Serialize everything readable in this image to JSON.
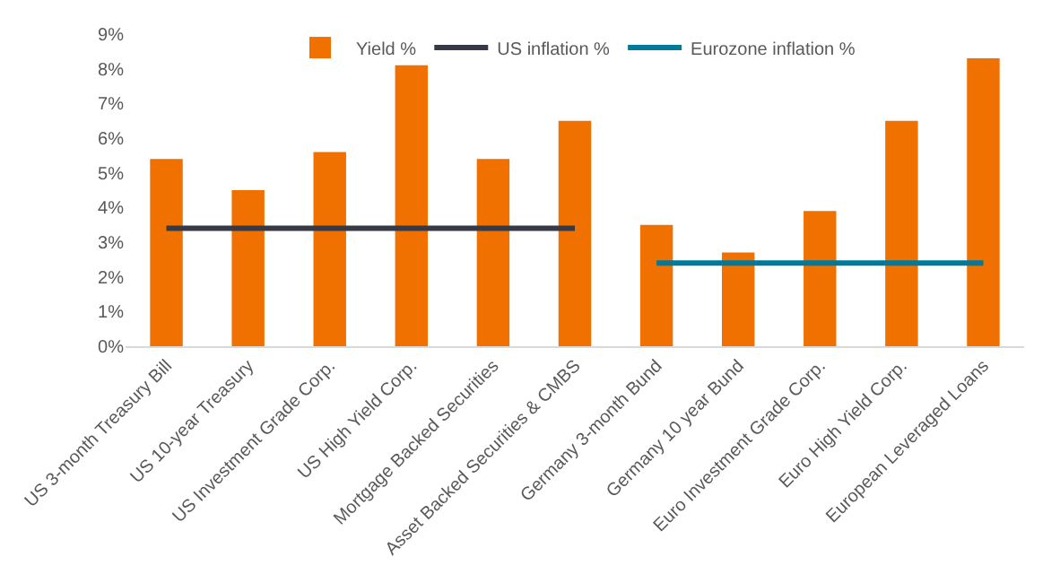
{
  "chart_data": {
    "type": "bar",
    "categories": [
      "US 3-month Treasury Bill",
      "US 10-year Treasury",
      "US Investment Grade Corp.",
      "US High Yield Corp.",
      "Mortgage Backed Securities",
      "Asset Backed Securities & CMBS",
      "Germany 3-month Bund",
      "Germany 10 year Bund",
      "Euro Investment Grade Corp.",
      "Euro High Yield Corp.",
      "European Leveraged Loans"
    ],
    "series": [
      {
        "name": "Yield %",
        "color": "#f07000",
        "values": [
          5.4,
          4.5,
          5.6,
          8.1,
          5.4,
          6.5,
          3.5,
          2.7,
          3.9,
          6.5,
          8.3
        ]
      },
      {
        "name": "US inflation %",
        "type": "line",
        "color": "#373a45",
        "values": [
          3.4,
          3.4,
          3.4,
          3.4,
          3.4,
          3.4,
          null,
          null,
          null,
          null,
          null
        ]
      },
      {
        "name": "Eurozone inflation %",
        "type": "line",
        "color": "#00799a",
        "values": [
          null,
          null,
          null,
          null,
          null,
          null,
          2.4,
          2.4,
          2.4,
          2.4,
          2.4
        ]
      }
    ],
    "ylim": [
      0,
      9
    ],
    "yticks": [
      {
        "value": 0,
        "label": "0%"
      },
      {
        "value": 1,
        "label": "1%"
      },
      {
        "value": 2,
        "label": "2%"
      },
      {
        "value": 3,
        "label": "3%"
      },
      {
        "value": 4,
        "label": "4%"
      },
      {
        "value": 5,
        "label": "5%"
      },
      {
        "value": 6,
        "label": "6%"
      },
      {
        "value": 7,
        "label": "7%"
      },
      {
        "value": 8,
        "label": "8%"
      },
      {
        "value": 9,
        "label": "9%"
      }
    ],
    "legend": "top",
    "grid": false
  }
}
